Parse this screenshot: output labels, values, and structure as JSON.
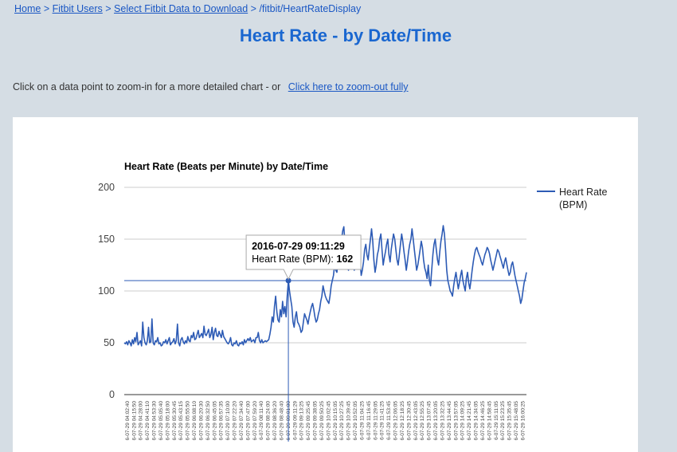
{
  "breadcrumb": {
    "home": "Home",
    "sep1": " > ",
    "users": "Fitbit Users",
    "sep2": " > ",
    "select": "Select Fitbit Data to Download",
    "sep3": " > ",
    "current": "/fitbit/HeartRateDisplay"
  },
  "page": {
    "title": "Heart Rate - by Date/Time",
    "instruction": "Click on a data point to zoom-in for a more detailed chart - or",
    "zoom_out_link": "Click here to zoom-out fully"
  },
  "colors": {
    "line": "#2d5bb5",
    "gridline": "#cccccc",
    "background": "#d5dde4"
  },
  "tooltip": {
    "title": "2016-07-29 09:11:29",
    "label": "Heart Rate (BPM): ",
    "value": "162"
  },
  "legend": {
    "line1": "Heart Rate",
    "line2": "(BPM)"
  },
  "chart_data": {
    "type": "line",
    "title": "Heart Rate (Beats per Minute) by Date/Time",
    "xlabel": "",
    "ylabel": "",
    "ylim": [
      0,
      200
    ],
    "yticks": [
      0,
      50,
      100,
      150,
      200
    ],
    "grid": true,
    "legend_position": "right",
    "crosshair_index": 7,
    "x_tick_labels": [
      "6-07-29 04:02:40",
      "6-07-29 04:15:50",
      "6-07-29 04:28:00",
      "6-07-29 04:41:10",
      "6-07-29 04:53:30",
      "6-07-29 05:05:40",
      "6-07-29 05:18:00",
      "6-07-29 05:30:45",
      "6-07-29 05:43:15",
      "6-07-29 05:55:50",
      "6-07-29 06:08:10",
      "6-07-29 06:20:30",
      "6-07-29 06:32:50",
      "6-07-29 06:45:05",
      "6-07-29 06:57:35",
      "6-07-29 07:10:00",
      "6-07-29 07:22:20",
      "6-07-29 07:34:40",
      "6-07-29 07:47:00",
      "6-07-29 07:59:20",
      "6-07-29 08:11:40",
      "6-07-29 08:24:00",
      "6-07-29 08:36:20",
      "6-07-29 08:48:40",
      "6-07-29 09:01:00",
      "6-07-29 09:11:29",
      "6-07-29 09:13:25",
      "6-07-29 09:25:45",
      "6-07-29 09:38:05",
      "6-07-29 09:50:25",
      "6-07-29 10:02:45",
      "6-07-29 10:15:05",
      "6-07-29 10:27:25",
      "6-07-29 10:39:45",
      "6-07-29 10:52:05",
      "6-07-29 11:04:25",
      "6-07-29 11:16:45",
      "6-07-29 11:29:05",
      "6-07-29 11:41:25",
      "6-07-29 11:53:45",
      "6-07-29 12:06:05",
      "6-07-29 12:18:25",
      "6-07-29 12:30:45",
      "6-07-29 12:43:05",
      "6-07-29 12:55:25",
      "6-07-29 13:07:45",
      "6-07-29 13:20:05",
      "6-07-29 13:32:25",
      "6-07-29 13:44:45",
      "6-07-29 13:57:05",
      "6-07-29 14:09:25",
      "6-07-29 14:21:45",
      "6-07-29 14:34:05",
      "6-07-29 14:46:25",
      "6-07-29 14:58:45",
      "6-07-29 15:11:05",
      "6-07-29 15:23:25",
      "6-07-29 15:35:45",
      "6-07-29 15:48:05",
      "6-07-29 16:00:25"
    ],
    "series": [
      {
        "name": "Heart Rate (BPM)",
        "values": [
          50,
          49,
          51,
          48,
          52,
          50,
          47,
          53,
          49,
          55,
          51,
          60,
          48,
          50,
          52,
          47,
          70,
          55,
          50,
          48,
          52,
          65,
          50,
          51,
          73,
          50,
          48,
          52,
          51,
          55,
          49,
          50,
          47,
          48,
          51,
          50,
          53,
          49,
          52,
          55,
          48,
          50,
          51,
          54,
          49,
          52,
          68,
          50,
          47,
          53,
          55,
          51,
          49,
          52,
          50,
          56,
          52,
          51,
          57,
          55,
          60,
          53,
          54,
          58,
          62,
          55,
          57,
          59,
          55,
          66,
          58,
          57,
          60,
          63,
          55,
          58,
          65,
          53,
          60,
          64,
          57,
          56,
          61,
          58,
          55,
          62,
          56,
          54,
          52,
          50,
          49,
          51,
          55,
          48,
          47,
          50,
          49,
          52,
          48,
          47,
          50,
          49,
          51,
          48,
          53,
          50,
          52,
          54,
          52,
          55,
          51,
          52,
          53,
          50,
          55,
          55,
          60,
          52,
          50,
          53,
          50,
          51,
          52,
          51,
          52,
          53,
          58,
          65,
          75,
          70,
          85,
          95,
          80,
          72,
          70,
          82,
          75,
          90,
          78,
          85,
          75,
          95,
          110,
          100,
          92,
          85,
          70,
          65,
          75,
          80,
          70,
          68,
          65,
          60,
          62,
          70,
          78,
          75,
          72,
          68,
          75,
          80,
          85,
          88,
          82,
          75,
          70,
          72,
          78,
          82,
          90,
          95,
          105,
          100,
          95,
          92,
          90,
          88,
          95,
          105,
          110,
          115,
          125,
          120,
          118,
          130,
          140,
          135,
          150,
          158,
          162,
          145,
          135,
          125,
          120,
          130,
          150,
          140,
          130,
          120,
          125,
          135,
          150,
          145,
          130,
          115,
          120,
          128,
          140,
          145,
          135,
          130,
          140,
          150,
          160,
          148,
          130,
          118,
          125,
          135,
          140,
          150,
          155,
          140,
          125,
          132,
          138,
          145,
          150,
          135,
          128,
          140,
          148,
          155,
          150,
          140,
          130,
          125,
          135,
          145,
          155,
          148,
          138,
          130,
          120,
          128,
          138,
          145,
          150,
          160,
          150,
          140,
          130,
          120,
          125,
          132,
          140,
          148,
          142,
          130,
          122,
          118,
          112,
          125,
          110,
          105,
          120,
          135,
          145,
          150,
          140,
          130,
          125,
          138,
          148,
          155,
          163,
          155,
          140,
          120,
          110,
          105,
          100,
          98,
          95,
          105,
          112,
          118,
          110,
          102,
          108,
          115,
          120,
          110,
          105,
          100,
          112,
          118,
          108,
          102,
          110,
          120,
          128,
          135,
          140,
          142,
          138,
          135,
          132,
          128,
          125,
          130,
          135,
          138,
          142,
          140,
          136,
          130,
          125,
          120,
          125,
          130,
          135,
          140,
          138,
          134,
          130,
          126,
          122,
          128,
          132,
          126,
          120,
          115,
          118,
          125,
          128,
          122,
          115,
          110,
          105,
          100,
          95,
          88,
          92,
          100,
          108,
          112,
          118
        ]
      }
    ]
  }
}
